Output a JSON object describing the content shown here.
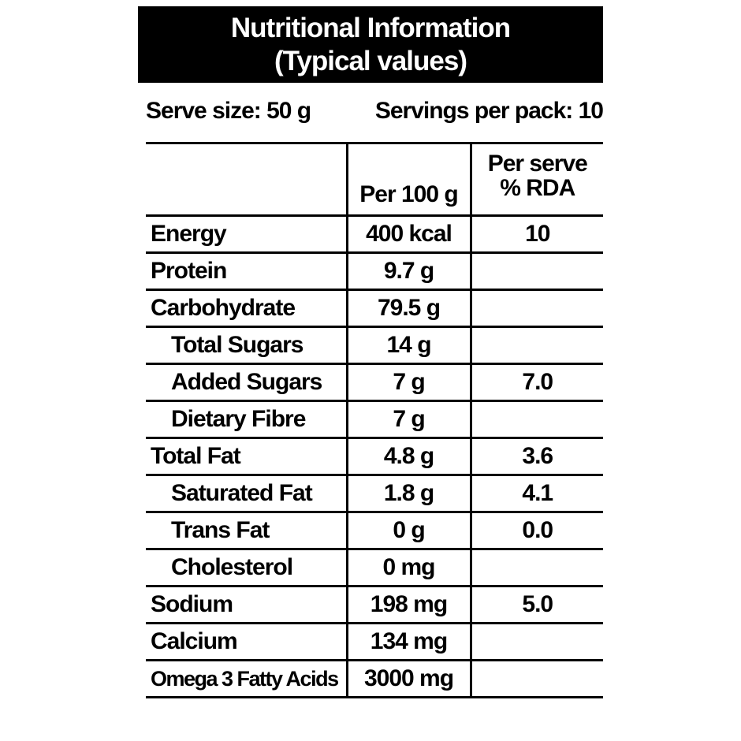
{
  "header": {
    "title_line1": "Nutritional Information",
    "title_line2": "(Typical values)"
  },
  "serving": {
    "serve_size": "Serve size: 50 g",
    "servings_per_pack": "Servings per pack: 10"
  },
  "table": {
    "columns": {
      "col1": "",
      "col2": "Per 100 g",
      "col3_line1": "Per serve",
      "col3_line2": "% RDA"
    },
    "rows": [
      {
        "label": "Energy",
        "per100": "400 kcal",
        "rda": "10"
      },
      {
        "label": "Protein",
        "per100": "9.7 g",
        "rda": ""
      },
      {
        "label": "Carbohydrate",
        "per100": "79.5 g",
        "rda": ""
      },
      {
        "label": "Total Sugars",
        "per100": "14 g",
        "rda": ""
      },
      {
        "label": "Added Sugars",
        "per100": "7 g",
        "rda": "7.0"
      },
      {
        "label": "Dietary Fibre",
        "per100": "7 g",
        "rda": ""
      },
      {
        "label": "Total Fat",
        "per100": "4.8 g",
        "rda": "3.6"
      },
      {
        "label": "Saturated Fat",
        "per100": "1.8 g",
        "rda": "4.1"
      },
      {
        "label": "Trans Fat",
        "per100": "0 g",
        "rda": "0.0"
      },
      {
        "label": "Cholesterol",
        "per100": "0 mg",
        "rda": ""
      },
      {
        "label": "Sodium",
        "per100": "198 mg",
        "rda": "5.0"
      },
      {
        "label": "Calcium",
        "per100": "134 mg",
        "rda": ""
      },
      {
        "label": "Omega 3 Fatty Acids",
        "per100": "3000 mg",
        "rda": ""
      }
    ]
  },
  "colors": {
    "banner_bg": "#000000",
    "banner_text": "#ffffff",
    "text": "#000000",
    "background": "#ffffff"
  }
}
